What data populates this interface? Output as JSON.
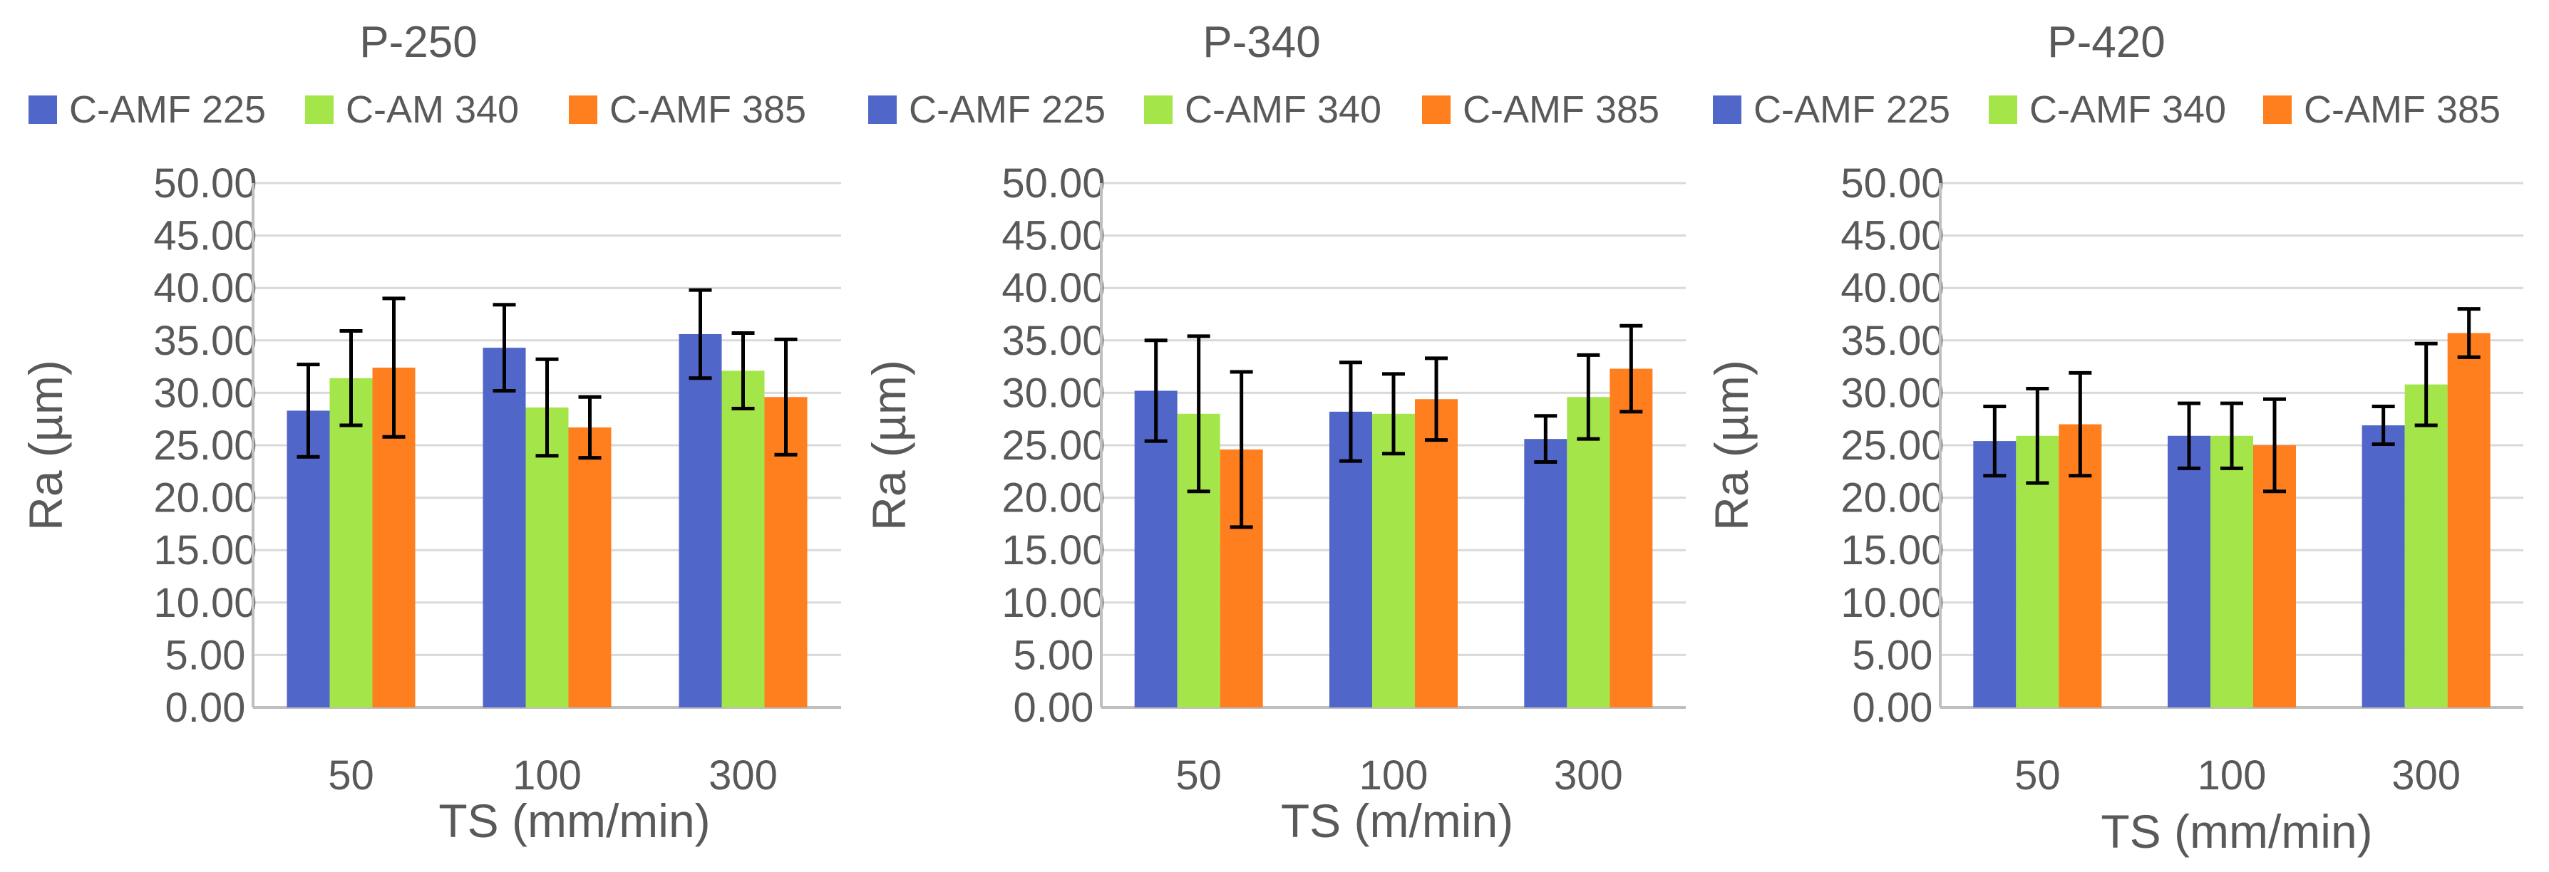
{
  "colors": {
    "series": [
      "#5066C8",
      "#A4E64A",
      "#FF7E1E"
    ],
    "text": "#595959",
    "grid": "#D9D9D9",
    "axis": "#BFBFBF",
    "error_bar": "#000000"
  },
  "chart_data": [
    {
      "type": "bar",
      "title": "P-250",
      "xlabel": "TS (mm/min)",
      "ylabel": "Ra (µm)",
      "ylim": [
        0,
        50
      ],
      "ytick_step": 5,
      "ytick_labels": [
        "0.00",
        "5.00",
        "10.00",
        "15.00",
        "20.00",
        "25.00",
        "30.00",
        "35.00",
        "40.00",
        "45.00",
        "50.00"
      ],
      "grid": true,
      "legend_position": "top",
      "categories": [
        "50",
        "100",
        "300"
      ],
      "series": [
        {
          "name": "C-AMF 225",
          "values": [
            28.3,
            34.3,
            35.6
          ],
          "errors": [
            4.4,
            4.1,
            4.2
          ]
        },
        {
          "name": "C-AM 340",
          "values": [
            31.4,
            28.6,
            32.1
          ],
          "errors": [
            4.5,
            4.6,
            3.6
          ]
        },
        {
          "name": "C-AMF 385",
          "values": [
            32.4,
            26.7,
            29.6
          ],
          "errors": [
            6.6,
            2.9,
            5.5
          ]
        }
      ]
    },
    {
      "type": "bar",
      "title": "P-340",
      "xlabel": "TS (m/min)",
      "ylabel": "Ra (µm)",
      "ylim": [
        0,
        50
      ],
      "ytick_step": 5,
      "ytick_labels": [
        "0.00",
        "5.00",
        "10.00",
        "15.00",
        "20.00",
        "25.00",
        "30.00",
        "35.00",
        "40.00",
        "45.00",
        "50.00"
      ],
      "grid": true,
      "legend_position": "top",
      "categories": [
        "50",
        "100",
        "300"
      ],
      "series": [
        {
          "name": "C-AMF 225",
          "values": [
            30.2,
            28.2,
            25.6
          ],
          "errors": [
            4.8,
            4.7,
            2.2
          ]
        },
        {
          "name": "C-AMF 340",
          "values": [
            28.0,
            28.0,
            29.6
          ],
          "errors": [
            7.4,
            3.8,
            4.0
          ]
        },
        {
          "name": "C-AMF 385",
          "values": [
            24.6,
            29.4,
            32.3
          ],
          "errors": [
            7.4,
            3.9,
            4.1
          ]
        }
      ]
    },
    {
      "type": "bar",
      "title": "P-420",
      "xlabel": "TS (mm/min)",
      "ylabel": "Ra (µm)",
      "ylim": [
        0,
        50
      ],
      "ytick_step": 5,
      "ytick_labels": [
        "0.00",
        "5.00",
        "10.00",
        "15.00",
        "20.00",
        "25.00",
        "30.00",
        "35.00",
        "40.00",
        "45.00",
        "50.00"
      ],
      "grid": true,
      "legend_position": "top",
      "categories": [
        "50",
        "100",
        "300"
      ],
      "series": [
        {
          "name": "C-AMF 225",
          "values": [
            25.4,
            25.9,
            26.9
          ],
          "errors": [
            3.3,
            3.1,
            1.8
          ]
        },
        {
          "name": "C-AMF 340",
          "values": [
            25.9,
            25.9,
            30.8
          ],
          "errors": [
            4.5,
            3.1,
            3.9
          ]
        },
        {
          "name": "C-AMF 385",
          "values": [
            27.0,
            25.0,
            35.7
          ],
          "errors": [
            4.9,
            4.4,
            2.3
          ]
        }
      ]
    }
  ]
}
